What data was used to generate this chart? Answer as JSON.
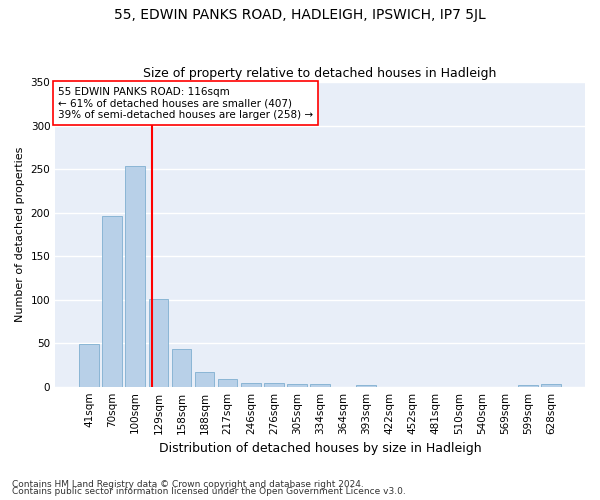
{
  "title": "55, EDWIN PANKS ROAD, HADLEIGH, IPSWICH, IP7 5JL",
  "subtitle": "Size of property relative to detached houses in Hadleigh",
  "xlabel": "Distribution of detached houses by size in Hadleigh",
  "ylabel": "Number of detached properties",
  "footnote1": "Contains HM Land Registry data © Crown copyright and database right 2024.",
  "footnote2": "Contains public sector information licensed under the Open Government Licence v3.0.",
  "categories": [
    "41sqm",
    "70sqm",
    "100sqm",
    "129sqm",
    "158sqm",
    "188sqm",
    "217sqm",
    "246sqm",
    "276sqm",
    "305sqm",
    "334sqm",
    "364sqm",
    "393sqm",
    "422sqm",
    "452sqm",
    "481sqm",
    "510sqm",
    "540sqm",
    "569sqm",
    "599sqm",
    "628sqm"
  ],
  "values": [
    49,
    196,
    253,
    101,
    43,
    17,
    9,
    4,
    4,
    3,
    3,
    0,
    2,
    0,
    0,
    0,
    0,
    0,
    0,
    2,
    3
  ],
  "bar_color": "#b8d0e8",
  "bar_edge_color": "#7fafd0",
  "vline_x_index": 2.72,
  "vline_color": "red",
  "annotation_text": "55 EDWIN PANKS ROAD: 116sqm\n← 61% of detached houses are smaller (407)\n39% of semi-detached houses are larger (258) →",
  "annotation_bbox_color": "white",
  "annotation_bbox_edge": "red",
  "ylim": [
    0,
    350
  ],
  "bg_color": "#ffffff",
  "plot_bg_color": "#e8eef8",
  "grid_color": "#ffffff",
  "title_fontsize": 10,
  "subtitle_fontsize": 9,
  "ylabel_fontsize": 8,
  "xlabel_fontsize": 9,
  "tick_fontsize": 7.5,
  "annotation_fontsize": 7.5,
  "footnote_fontsize": 6.5
}
